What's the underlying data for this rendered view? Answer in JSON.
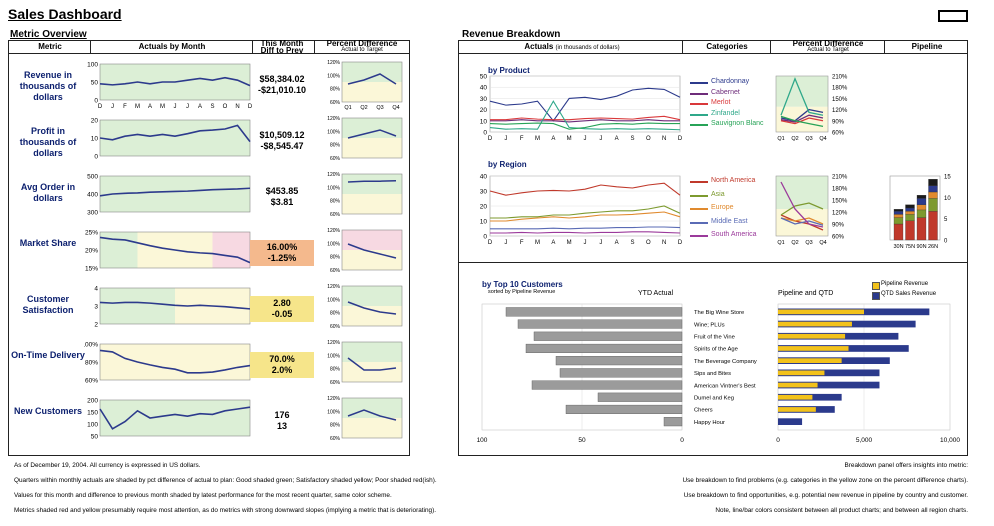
{
  "title": "Sales Dashboard",
  "metric_overview": {
    "heading": "Metric Overview",
    "col_metric": "Metric",
    "col_actuals": "Actuals by Month",
    "col_month_l1": "This Month",
    "col_month_l2": "Diff to Prev",
    "col_pct_l1": "Percent Difference",
    "col_pct_l2": "Actual to Target",
    "months": [
      "D",
      "J",
      "F",
      "M",
      "A",
      "M",
      "J",
      "J",
      "A",
      "S",
      "O",
      "N",
      "D"
    ],
    "quarters": [
      "Q1",
      "Q2",
      "Q3",
      "Q4"
    ],
    "metrics": [
      {
        "label": "Revenue in thousands of dollars",
        "value": "$58,384.02",
        "diff": "-$21,010.10",
        "highlight": "none",
        "yticks": [
          "100",
          "50",
          "0"
        ],
        "pct_ticks": [
          "120%",
          "100%",
          "80%",
          "60%"
        ]
      },
      {
        "label": "Profit in thousands of dollars",
        "value": "$10,509.12",
        "diff": "-$8,545.47",
        "highlight": "none",
        "yticks": [
          "20",
          "10",
          "0"
        ],
        "pct_ticks": [
          "120%",
          "100%",
          "80%",
          "60%"
        ]
      },
      {
        "label": "Avg Order in dollars",
        "value": "$453.85",
        "diff": "$3.81",
        "highlight": "none",
        "yticks": [
          "500",
          "400",
          "300"
        ],
        "pct_ticks": [
          "120%",
          "100%",
          "80%",
          "60%"
        ]
      },
      {
        "label": "Market Share",
        "value": "16.00%",
        "diff": "-1.25%",
        "highlight": "red",
        "yticks": [
          "25%",
          "20%",
          "15%"
        ],
        "pct_ticks": [
          "120%",
          "100%",
          "80%",
          "60%"
        ]
      },
      {
        "label": "Customer Satisfaction",
        "value": "2.80",
        "diff": "-0.05",
        "highlight": "yellow",
        "yticks": [
          "4",
          "3",
          "2"
        ],
        "pct_ticks": [
          "120%",
          "100%",
          "80%",
          "60%"
        ]
      },
      {
        "label": "On-Time Delivery",
        "value": "70.0%",
        "diff": "2.0%",
        "highlight": "yellow",
        "yticks": [
          "100%",
          "80%",
          "60%"
        ],
        "pct_ticks": [
          "120%",
          "100%",
          "80%",
          "60%"
        ]
      },
      {
        "label": "New Customers",
        "value": "176",
        "diff": "13",
        "highlight": "none",
        "yticks": [
          "200",
          "150",
          "100",
          "50"
        ],
        "pct_ticks": [
          "120%",
          "100%",
          "80%",
          "60%"
        ]
      }
    ]
  },
  "revenue_breakdown": {
    "heading": "Revenue Breakdown",
    "col_actuals": "Actuals",
    "col_actuals_sub": "(in thousands of dollars)",
    "col_categories": "Categories",
    "col_pct_l1": "Percent Difference",
    "col_pct_l2": "Actual to Target",
    "col_pipeline": "Pipeline",
    "by_product": "by Product",
    "by_region": "by Region",
    "product_yticks": [
      "50",
      "40",
      "30",
      "20",
      "10",
      "0"
    ],
    "region_yticks": [
      "40",
      "30",
      "20",
      "10",
      "0"
    ],
    "pct_ticks": [
      "210%",
      "180%",
      "150%",
      "120%",
      "90%",
      "60%"
    ],
    "pipeline_yticks": [
      "15",
      "10",
      "5",
      "0"
    ],
    "pipeline_x": [
      "30N",
      "75N",
      "90N",
      "26N"
    ],
    "products": [
      {
        "name": "Chardonnay",
        "color": "#2c3a8c"
      },
      {
        "name": "Cabernet",
        "color": "#6e2c7a"
      },
      {
        "name": "Merlot",
        "color": "#d9383a"
      },
      {
        "name": "Zinfandel",
        "color": "#2fa88a"
      },
      {
        "name": "Sauvignon Blanc",
        "color": "#27a357"
      }
    ],
    "regions": [
      {
        "name": "North America",
        "color": "#c0392b"
      },
      {
        "name": "Asia",
        "color": "#7d9a2f"
      },
      {
        "name": "Europe",
        "color": "#e08a2e"
      },
      {
        "name": "Middle East",
        "color": "#5a6bb5"
      },
      {
        "name": "South America",
        "color": "#9b3a9b"
      }
    ]
  },
  "top_customers": {
    "title": "by Top 10 Customers",
    "subtitle": "sorted by Pipeline Revenue",
    "ytd_label": "YTD Actual",
    "pipeline_label": "Pipeline and QTD",
    "legend_pipeline": "Pipeline Revenue",
    "legend_qtd": "QTD Sales Revenue",
    "left_axis": [
      "100",
      "50",
      "0"
    ],
    "right_axis": [
      "0",
      "5,000",
      "10,000"
    ],
    "customers": [
      {
        "name": "The Big Wine Store",
        "ytd": 88,
        "pipeline": 8800,
        "qtd": 5000
      },
      {
        "name": "Wine; PLUs",
        "ytd": 82,
        "pipeline": 8000,
        "qtd": 4300
      },
      {
        "name": "Fruit of the Vine",
        "ytd": 74,
        "pipeline": 7000,
        "qtd": 3900
      },
      {
        "name": "Spirits of the Age",
        "ytd": 78,
        "pipeline": 7600,
        "qtd": 4100
      },
      {
        "name": "The Beverage Company",
        "ytd": 63,
        "pipeline": 6500,
        "qtd": 3700
      },
      {
        "name": "Sips and Bites",
        "ytd": 61,
        "pipeline": 5900,
        "qtd": 2700
      },
      {
        "name": "American Vintner's Best",
        "ytd": 75,
        "pipeline": 5900,
        "qtd": 2300
      },
      {
        "name": "Dumel and Keg",
        "ytd": 42,
        "pipeline": 3700,
        "qtd": 2000
      },
      {
        "name": "Cheers",
        "ytd": 58,
        "pipeline": 3300,
        "qtd": 2200
      },
      {
        "name": "Happy Hour",
        "ytd": 9,
        "pipeline": 1400,
        "qtd": 0
      }
    ],
    "colors": {
      "ytd": "#9b9b9b",
      "pipeline": "#f2c21b",
      "qtd": "#2b3a8c"
    }
  },
  "footnotes": {
    "left": [
      "As of December 19, 2004. All currency is expressed in US dollars.",
      "Quarters within monthly actuals are shaded by pct difference of actual to plan: Good shaded green; Satisfactory shaded yellow; Poor shaded red(ish).",
      "Values for this month and difference to previous month shaded by latest performance for the most recent quarter, same color scheme.",
      "Metrics shaded red and yellow presumably require most attention, as do metrics with strong downward slopes (implying a metric that is deteriorating)."
    ],
    "right": [
      "Breakdown panel offers insights into metric:",
      "Use breakdown to find problems (e.g. categories in the yellow zone on the percent difference charts).",
      "Use breakdown to find opportunities, e.g. potential new revenue in pipeline by country and customer.",
      "Note, line/bar colors consistent between all product charts; and between all region charts."
    ]
  },
  "colors": {
    "green": "#dcefd6",
    "yellow": "#fbf7d8",
    "red": "#f7d9e2",
    "line": "#2c3a8c",
    "accent": "#0b1f6e"
  }
}
